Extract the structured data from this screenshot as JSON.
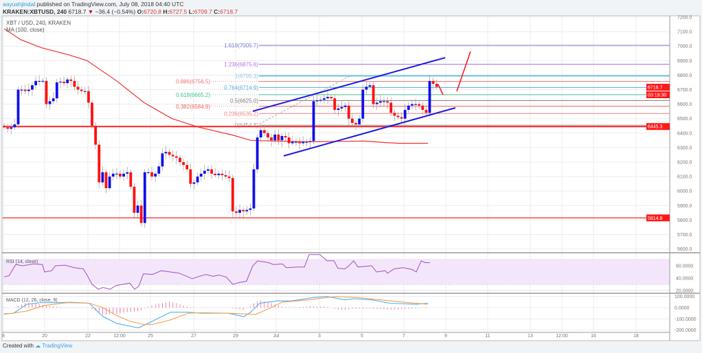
{
  "header": {
    "author": "aayushjindal",
    "published": "published on TradingView.com, July 08, 2018 04:40 UTC",
    "symbol": "KRAKEN:XBTUSD, 240",
    "last": "6718.7",
    "change": "−36.4 (−0.54%)",
    "open_label": "O:",
    "open": "6720.8",
    "high_label": "H:",
    "high": "6727.5",
    "low_label": "L:",
    "low": "6709.7",
    "close_label": "C:",
    "close": "6718.7",
    "down_icon": "triangle-down-icon"
  },
  "legend": {
    "title": "XBT / USD, 240, KRAKEN",
    "ma": "MA (100, close)",
    "rsi": "RSI (14, close)",
    "macd": "MACD (12, 26, close, 9)"
  },
  "price_axis": {
    "ticks": [
      "7200.0",
      "7100.0",
      "7000.0",
      "6900.0",
      "6800.0",
      "6700.0",
      "6600.0",
      "6500.0",
      "6400.0",
      "6300.0",
      "6200.0",
      "6100.0",
      "6000.0",
      "5900.0",
      "5800.0",
      "5700.0",
      "5600.0"
    ],
    "last_price_tag": "6718.7",
    "countdown_tag": "03:19:30",
    "level_tags": [
      "6445.3",
      "5814.8"
    ]
  },
  "rsi_axis": [
    "60.0000",
    "40.0000",
    "20.0000"
  ],
  "macd_axis": [
    "100.0000",
    "0.0000",
    "-100.0000",
    "-200.0000"
  ],
  "time_axis": [
    "8",
    "20",
    "22",
    "12:00",
    "25",
    "27",
    "29",
    "Jul",
    "3",
    "5",
    "7",
    "9",
    "11",
    "13",
    "12:00",
    "16",
    "18"
  ],
  "footer": {
    "created": "Created with",
    "brand": "TradingView"
  },
  "colors": {
    "up": "#1010e8",
    "down": "#ff1010",
    "ma": "#f03030",
    "rsi": "#a050c0",
    "rsi_band": "#f3e6fb",
    "macd": "#4ab0f0",
    "signal": "#f5a050",
    "hist": "#f06090",
    "trendline": "#1a1ae0",
    "level": "#ff2020"
  },
  "chart_data": {
    "type": "candlestick",
    "timeframe": "240",
    "ylim": [
      5600,
      7200
    ],
    "closes": [
      6440,
      6430,
      6440,
      6460,
      6700,
      6700,
      6690,
      6700,
      6730,
      6760,
      6760,
      6760,
      6600,
      6620,
      6640,
      6750,
      6755,
      6745,
      6770,
      6760,
      6720,
      6700,
      6690,
      6690,
      6610,
      6450,
      6320,
      6060,
      6130,
      6020,
      6100,
      6120,
      6120,
      6100,
      6120,
      6130,
      6030,
      5850,
      5900,
      5780,
      6130,
      6130,
      6100,
      6120,
      6170,
      6260,
      6270,
      6250,
      6240,
      6230,
      6200,
      6180,
      6150,
      6050,
      6060,
      6100,
      6120,
      6140,
      6150,
      6120,
      6110,
      6120,
      6110,
      6100,
      6090,
      5860,
      5850,
      5870,
      5860,
      5870,
      5880,
      6150,
      6370,
      6420,
      6400,
      6370,
      6350,
      6390,
      6350,
      6380,
      6370,
      6330,
      6340,
      6340,
      6330,
      6340,
      6340,
      6345,
      6620,
      6625,
      6630,
      6640,
      6650,
      6640,
      6560,
      6570,
      6580,
      6590,
      6500,
      6470,
      6460,
      6500,
      6700,
      6720,
      6730,
      6600,
      6610,
      6620,
      6620,
      6610,
      6540,
      6520,
      6510,
      6500,
      6560,
      6590,
      6600,
      6600,
      6590,
      6560,
      6540,
      6760,
      6740,
      6718.7
    ],
    "ma100": [
      [
        0,
        7120
      ],
      [
        4.7,
        7045
      ],
      [
        10.5,
        6990
      ],
      [
        18.4,
        6940
      ],
      [
        23.6,
        6900
      ],
      [
        32,
        6760
      ],
      [
        39.8,
        6610
      ],
      [
        47.7,
        6500
      ],
      [
        55.5,
        6440
      ],
      [
        65.2,
        6385
      ],
      [
        70.1,
        6350
      ],
      [
        77,
        6345
      ],
      [
        86.7,
        6340
      ],
      [
        102.3,
        6345
      ],
      [
        108.2,
        6335
      ],
      [
        112.1,
        6330
      ],
      [
        120.5,
        6330
      ]
    ],
    "horizontal_levels": [
      6445.3,
      5814.8
    ],
    "fibonacci": [
      {
        "label": "1.618(7005.7)",
        "price": 7005.7,
        "color": "#7878e0"
      },
      {
        "label": "1.236(6875.6)",
        "price": 6875.6,
        "color": "#b070e0"
      },
      {
        "label": "1(6795.3)",
        "price": 6795.3,
        "color": "#8cc8e8"
      },
      {
        "label": "0.886(6756.5)",
        "price": 6756.5,
        "color": "#f07070"
      },
      {
        "label": "0.764(6714.9)",
        "price": 6714.9,
        "color": "#50a8e0"
      },
      {
        "label": "0.618(6665.2)",
        "price": 6665.2,
        "color": "#40c090"
      },
      {
        "label": "0.5(6625.0)",
        "price": 6625.0,
        "color": "#8a7078"
      },
      {
        "label": "0.382(6584.9)",
        "price": 6584.9,
        "color": "#f05a5a"
      },
      {
        "label": "0.236(6535.2)",
        "price": 6535.2,
        "color": "#f08080"
      },
      {
        "label": "0(6454.8)",
        "price": 6454.8,
        "color": "#999999"
      }
    ],
    "rsi": {
      "range": [
        15,
        80
      ],
      "bands": [
        30,
        70
      ],
      "values": [
        [
          0,
          42
        ],
        [
          1.4,
          44
        ],
        [
          3.3,
          62
        ],
        [
          5.3,
          60
        ],
        [
          8.4,
          63
        ],
        [
          10.9,
          62
        ],
        [
          11.5,
          50
        ],
        [
          13.5,
          52
        ],
        [
          14.6,
          60
        ],
        [
          17.4,
          61
        ],
        [
          19.9,
          57
        ],
        [
          22.5,
          55
        ],
        [
          23.6,
          45
        ],
        [
          25,
          30
        ],
        [
          26.8,
          22
        ],
        [
          28.1,
          25
        ],
        [
          30.1,
          22
        ],
        [
          31.8,
          28
        ],
        [
          33.8,
          30
        ],
        [
          35.7,
          32
        ],
        [
          37.1,
          22
        ],
        [
          38.3,
          27
        ],
        [
          39.6,
          47
        ],
        [
          42.2,
          46
        ],
        [
          44.7,
          52
        ],
        [
          47.3,
          50
        ],
        [
          49.8,
          48
        ],
        [
          52.3,
          42
        ],
        [
          53.5,
          39
        ],
        [
          55.5,
          43
        ],
        [
          57.4,
          46
        ],
        [
          59.4,
          43
        ],
        [
          61.1,
          45
        ],
        [
          63.1,
          42
        ],
        [
          65,
          30
        ],
        [
          67,
          33
        ],
        [
          68.9,
          35
        ],
        [
          70.7,
          60
        ],
        [
          72.1,
          68
        ],
        [
          75.2,
          65
        ],
        [
          76.6,
          62
        ],
        [
          79.1,
          63
        ],
        [
          80.3,
          57
        ],
        [
          83.6,
          58
        ],
        [
          85.4,
          58
        ],
        [
          86.7,
          78
        ],
        [
          89.8,
          78
        ],
        [
          91.8,
          68
        ],
        [
          93.8,
          68
        ],
        [
          94.9,
          56
        ],
        [
          96.9,
          55
        ],
        [
          98,
          60
        ],
        [
          99.4,
          68
        ],
        [
          100.6,
          58
        ],
        [
          104.5,
          60
        ],
        [
          105.9,
          50
        ],
        [
          108.4,
          52
        ],
        [
          109,
          48
        ],
        [
          110.9,
          55
        ],
        [
          113.5,
          57
        ],
        [
          116,
          54
        ],
        [
          117.2,
          50
        ],
        [
          118.6,
          68
        ],
        [
          119.7,
          65
        ],
        [
          121.1,
          65
        ]
      ]
    },
    "macd": {
      "range": [
        -215,
        125
      ],
      "macd": [
        [
          0,
          -55
        ],
        [
          2.7,
          -50
        ],
        [
          6.4,
          30
        ],
        [
          10.4,
          45
        ],
        [
          15.4,
          45
        ],
        [
          19.1,
          48
        ],
        [
          24.2,
          40
        ],
        [
          28.1,
          -80
        ],
        [
          32,
          -140
        ],
        [
          37.1,
          -175
        ],
        [
          38.3,
          -180
        ],
        [
          42.2,
          -120
        ],
        [
          47.3,
          -40
        ],
        [
          52.3,
          -40
        ],
        [
          56,
          -50
        ],
        [
          63.7,
          -50
        ],
        [
          68.2,
          -80
        ],
        [
          70.1,
          -40
        ],
        [
          72.7,
          40
        ],
        [
          77.7,
          60
        ],
        [
          81.6,
          60
        ],
        [
          87.9,
          90
        ],
        [
          91.8,
          100
        ],
        [
          96.9,
          70
        ],
        [
          99.4,
          80
        ],
        [
          104.5,
          70
        ],
        [
          109.6,
          40
        ],
        [
          117.2,
          30
        ],
        [
          120.5,
          40
        ]
      ],
      "signal": [
        [
          0,
          -60
        ],
        [
          6.4,
          -30
        ],
        [
          11.5,
          20
        ],
        [
          18,
          45
        ],
        [
          24.2,
          40
        ],
        [
          28.1,
          0
        ],
        [
          32,
          -70
        ],
        [
          35.7,
          -120
        ],
        [
          39.6,
          -150
        ],
        [
          42.2,
          -150
        ],
        [
          47.3,
          -110
        ],
        [
          52.3,
          -50
        ],
        [
          56,
          -45
        ],
        [
          63.7,
          -50
        ],
        [
          71.5,
          -60
        ],
        [
          75.2,
          -10
        ],
        [
          79.1,
          50
        ],
        [
          86.7,
          70
        ],
        [
          94.3,
          100
        ],
        [
          100.6,
          90
        ],
        [
          107,
          70
        ],
        [
          113.5,
          50
        ],
        [
          120.5,
          30
        ]
      ]
    }
  }
}
